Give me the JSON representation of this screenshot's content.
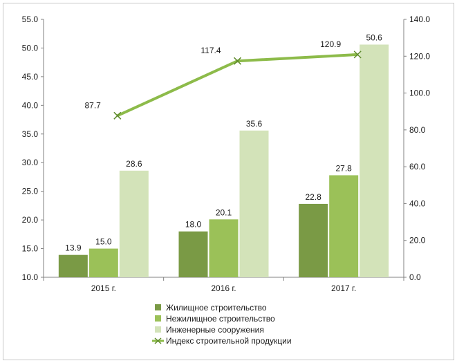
{
  "chart_data": {
    "type": "bar",
    "categories": [
      "2015 г.",
      "2016 г.",
      "2017 г."
    ],
    "series": [
      {
        "name": "Жилищное строительство",
        "values": [
          13.9,
          18.0,
          22.8
        ],
        "color": "#7a9a45"
      },
      {
        "name": "Нежилищное строительство",
        "values": [
          15.0,
          20.1,
          27.8
        ],
        "color": "#9bc158"
      },
      {
        "name": "Инженерные сооружения",
        "values": [
          28.6,
          35.6,
          50.6
        ],
        "color": "#d3e3b9"
      }
    ],
    "line_series": {
      "name": "Индекс строительной продукции",
      "values": [
        87.7,
        117.4,
        120.9
      ],
      "color": "#8dbb4a",
      "axis": "right"
    },
    "left_axis": {
      "min": 10.0,
      "max": 55.0,
      "step": 5.0,
      "ticks": [
        "10.0",
        "15.0",
        "20.0",
        "25.0",
        "30.0",
        "35.0",
        "40.0",
        "45.0",
        "50.0",
        "55.0"
      ]
    },
    "right_axis": {
      "min": 0.0,
      "max": 140.0,
      "step": 20.0,
      "ticks": [
        "0.0",
        "20.0",
        "40.0",
        "60.0",
        "80.0",
        "100.0",
        "120.0",
        "140.0"
      ]
    },
    "bar_labels": [
      [
        "13.9",
        "18.0",
        "22.8"
      ],
      [
        "15.0",
        "20.1",
        "27.8"
      ],
      [
        "28.6",
        "35.6",
        "50.6"
      ]
    ],
    "line_labels": [
      "87.7",
      "117.4",
      "120.9"
    ],
    "legend_position": "bottom",
    "grid": false
  }
}
